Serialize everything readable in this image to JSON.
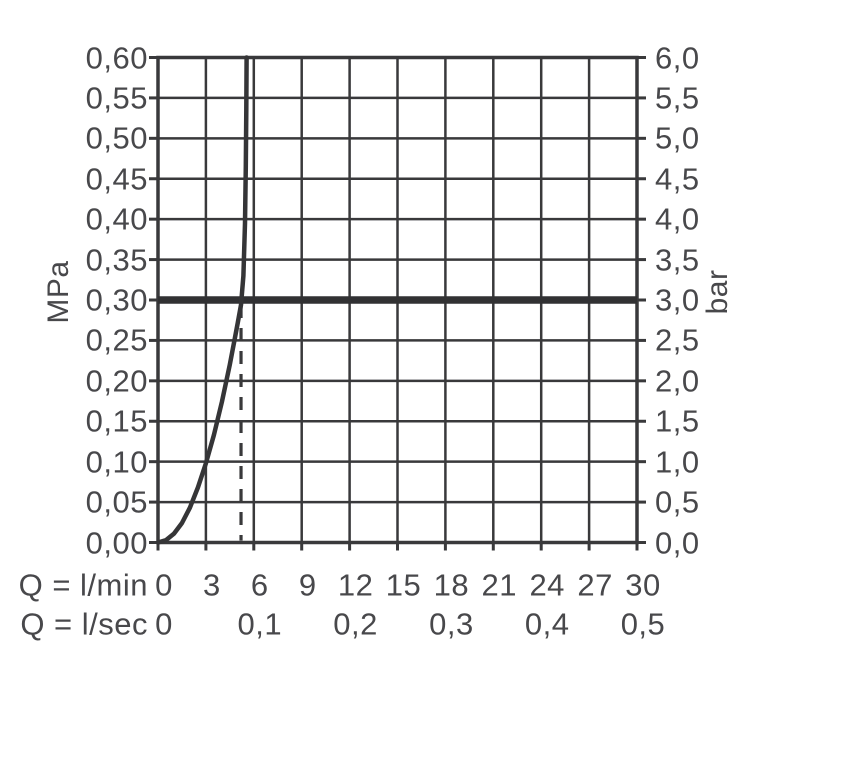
{
  "page": {
    "background": "#ffffff"
  },
  "styles": {
    "line_color": "#39393b",
    "curve_color": "#353537",
    "reference_line_color": "#313133",
    "text_color": "#48484b"
  },
  "chart_data": {
    "type": "line",
    "title": "",
    "description": "Flow rate vs pressure performance diagram with flow limiter curve",
    "grid": true,
    "legend": "none",
    "y_axis_left": {
      "label": "MPa",
      "range": [
        0,
        0.6
      ],
      "tick_step": 0.05,
      "tick_labels": [
        "0,00",
        "0,05",
        "0,10",
        "0,15",
        "0,20",
        "0,25",
        "0,30",
        "0,35",
        "0,40",
        "0,45",
        "0,50",
        "0,55",
        "0,60"
      ]
    },
    "y_axis_right": {
      "label": "bar",
      "range": [
        0,
        6
      ],
      "tick_step": 0.5,
      "tick_labels": [
        "0,0",
        "0,5",
        "1,0",
        "1,5",
        "2,0",
        "2,5",
        "3,0",
        "3,5",
        "4,0",
        "4,5",
        "5,0",
        "5,5",
        "6,0"
      ]
    },
    "x_axis_primary": {
      "label": "Q = l/min",
      "range": [
        0,
        30
      ],
      "ticks": [
        0,
        3,
        6,
        9,
        12,
        15,
        18,
        21,
        24,
        27,
        30
      ],
      "tick_labels": [
        "0",
        "3",
        "6",
        "9",
        "12",
        "15",
        "18",
        "21",
        "24",
        "27",
        "30"
      ]
    },
    "x_axis_secondary": {
      "label": "Q = l/sec",
      "range": [
        0,
        0.5
      ],
      "ticks": [
        0,
        0.1,
        0.2,
        0.3,
        0.4,
        0.5
      ],
      "tick_labels": [
        "0",
        "0,1",
        "0,2",
        "0,3",
        "0,4",
        "0,5"
      ]
    },
    "series": [
      {
        "name": "flow-pressure-curve",
        "x_unit": "l/min",
        "y_unit": "MPa",
        "points": [
          [
            0,
            0
          ],
          [
            0.5,
            0.003
          ],
          [
            1,
            0.011
          ],
          [
            1.5,
            0.024
          ],
          [
            2,
            0.043
          ],
          [
            2.5,
            0.068
          ],
          [
            3,
            0.098
          ],
          [
            3.5,
            0.133
          ],
          [
            4,
            0.174
          ],
          [
            4.5,
            0.22
          ],
          [
            4.8,
            0.251
          ],
          [
            5,
            0.272
          ],
          [
            5.2,
            0.294
          ],
          [
            5.35,
            0.33
          ],
          [
            5.45,
            0.395
          ],
          [
            5.5,
            0.465
          ],
          [
            5.53,
            0.535
          ],
          [
            5.55,
            0.6
          ]
        ]
      }
    ],
    "annotations": {
      "horizontal_reference_line": {
        "y_mpa": 0.3,
        "y_bar": 3.0,
        "style": "thick"
      },
      "vertical_dashed_line": {
        "x_lmin": 5.2,
        "from_mpa": 0,
        "to_mpa": 0.3
      }
    }
  }
}
